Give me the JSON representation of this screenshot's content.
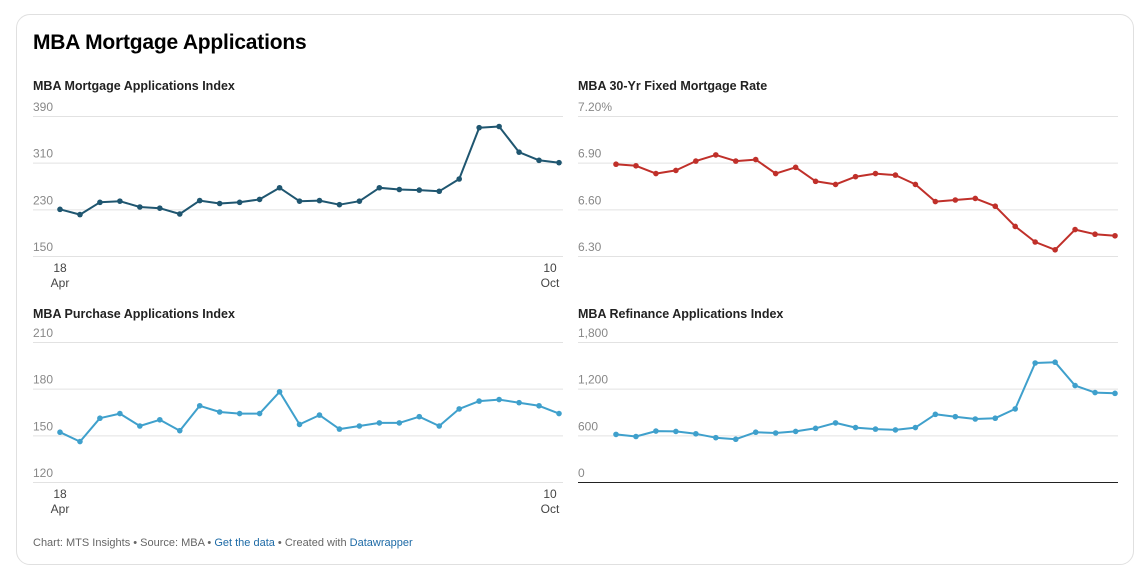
{
  "title": "MBA Mortgage Applications",
  "footer": {
    "prefix": "Chart: MTS Insights • Source: MBA • ",
    "get_data": "Get the data",
    "middle": " • Created with ",
    "datawrapper": "Datawrapper"
  },
  "chart_data": [
    {
      "type": "line",
      "title": "MBA Mortgage Applications Index",
      "color": "#1f5670",
      "yticks": [
        "390",
        "310",
        "230",
        "150"
      ],
      "ylim": [
        150,
        390
      ],
      "xticks": [
        {
          "day": "18",
          "month": "Apr"
        },
        {
          "day": "10",
          "month": "Oct"
        }
      ],
      "values": [
        230,
        221,
        242,
        244,
        234,
        232,
        222,
        245,
        240,
        242,
        247,
        267,
        244,
        245,
        238,
        244,
        267,
        264,
        263,
        261,
        282,
        370,
        372,
        328,
        314,
        310
      ]
    },
    {
      "type": "line",
      "title": "MBA 30-Yr Fixed Mortgage Rate",
      "color": "#c0302a",
      "yticks": [
        "7.20%",
        "6.90",
        "6.60",
        "6.30"
      ],
      "ylim": [
        6.3,
        7.2
      ],
      "xticks": [],
      "values": [
        6.89,
        6.88,
        6.83,
        6.85,
        6.91,
        6.95,
        6.91,
        6.92,
        6.83,
        6.87,
        6.78,
        6.76,
        6.81,
        6.83,
        6.82,
        6.76,
        6.65,
        6.66,
        6.67,
        6.62,
        6.49,
        6.39,
        6.34,
        6.47,
        6.44,
        6.43
      ]
    },
    {
      "type": "line",
      "title": "MBA Purchase Applications Index",
      "color": "#3fa0cc",
      "yticks": [
        "210",
        "180",
        "150",
        "120"
      ],
      "ylim": [
        120,
        210
      ],
      "xticks": [
        {
          "day": "18",
          "month": "Apr"
        },
        {
          "day": "10",
          "month": "Oct"
        }
      ],
      "values": [
        152,
        146,
        161,
        164,
        156,
        160,
        153,
        169,
        165,
        164,
        164,
        178,
        157,
        163,
        154,
        156,
        158,
        158,
        162,
        156,
        167,
        172,
        173,
        171,
        169,
        164
      ]
    },
    {
      "type": "line",
      "title": "MBA Refinance Applications Index",
      "color": "#3fa0cc",
      "yticks": [
        "1,800",
        "1,200",
        "600",
        "0"
      ],
      "ylim": [
        0,
        1800
      ],
      "xticks": [],
      "values": [
        612,
        585,
        655,
        650,
        620,
        570,
        550,
        640,
        630,
        650,
        690,
        760,
        700,
        680,
        670,
        700,
        870,
        840,
        810,
        820,
        940,
        1530,
        1540,
        1240,
        1150,
        1140
      ]
    }
  ]
}
